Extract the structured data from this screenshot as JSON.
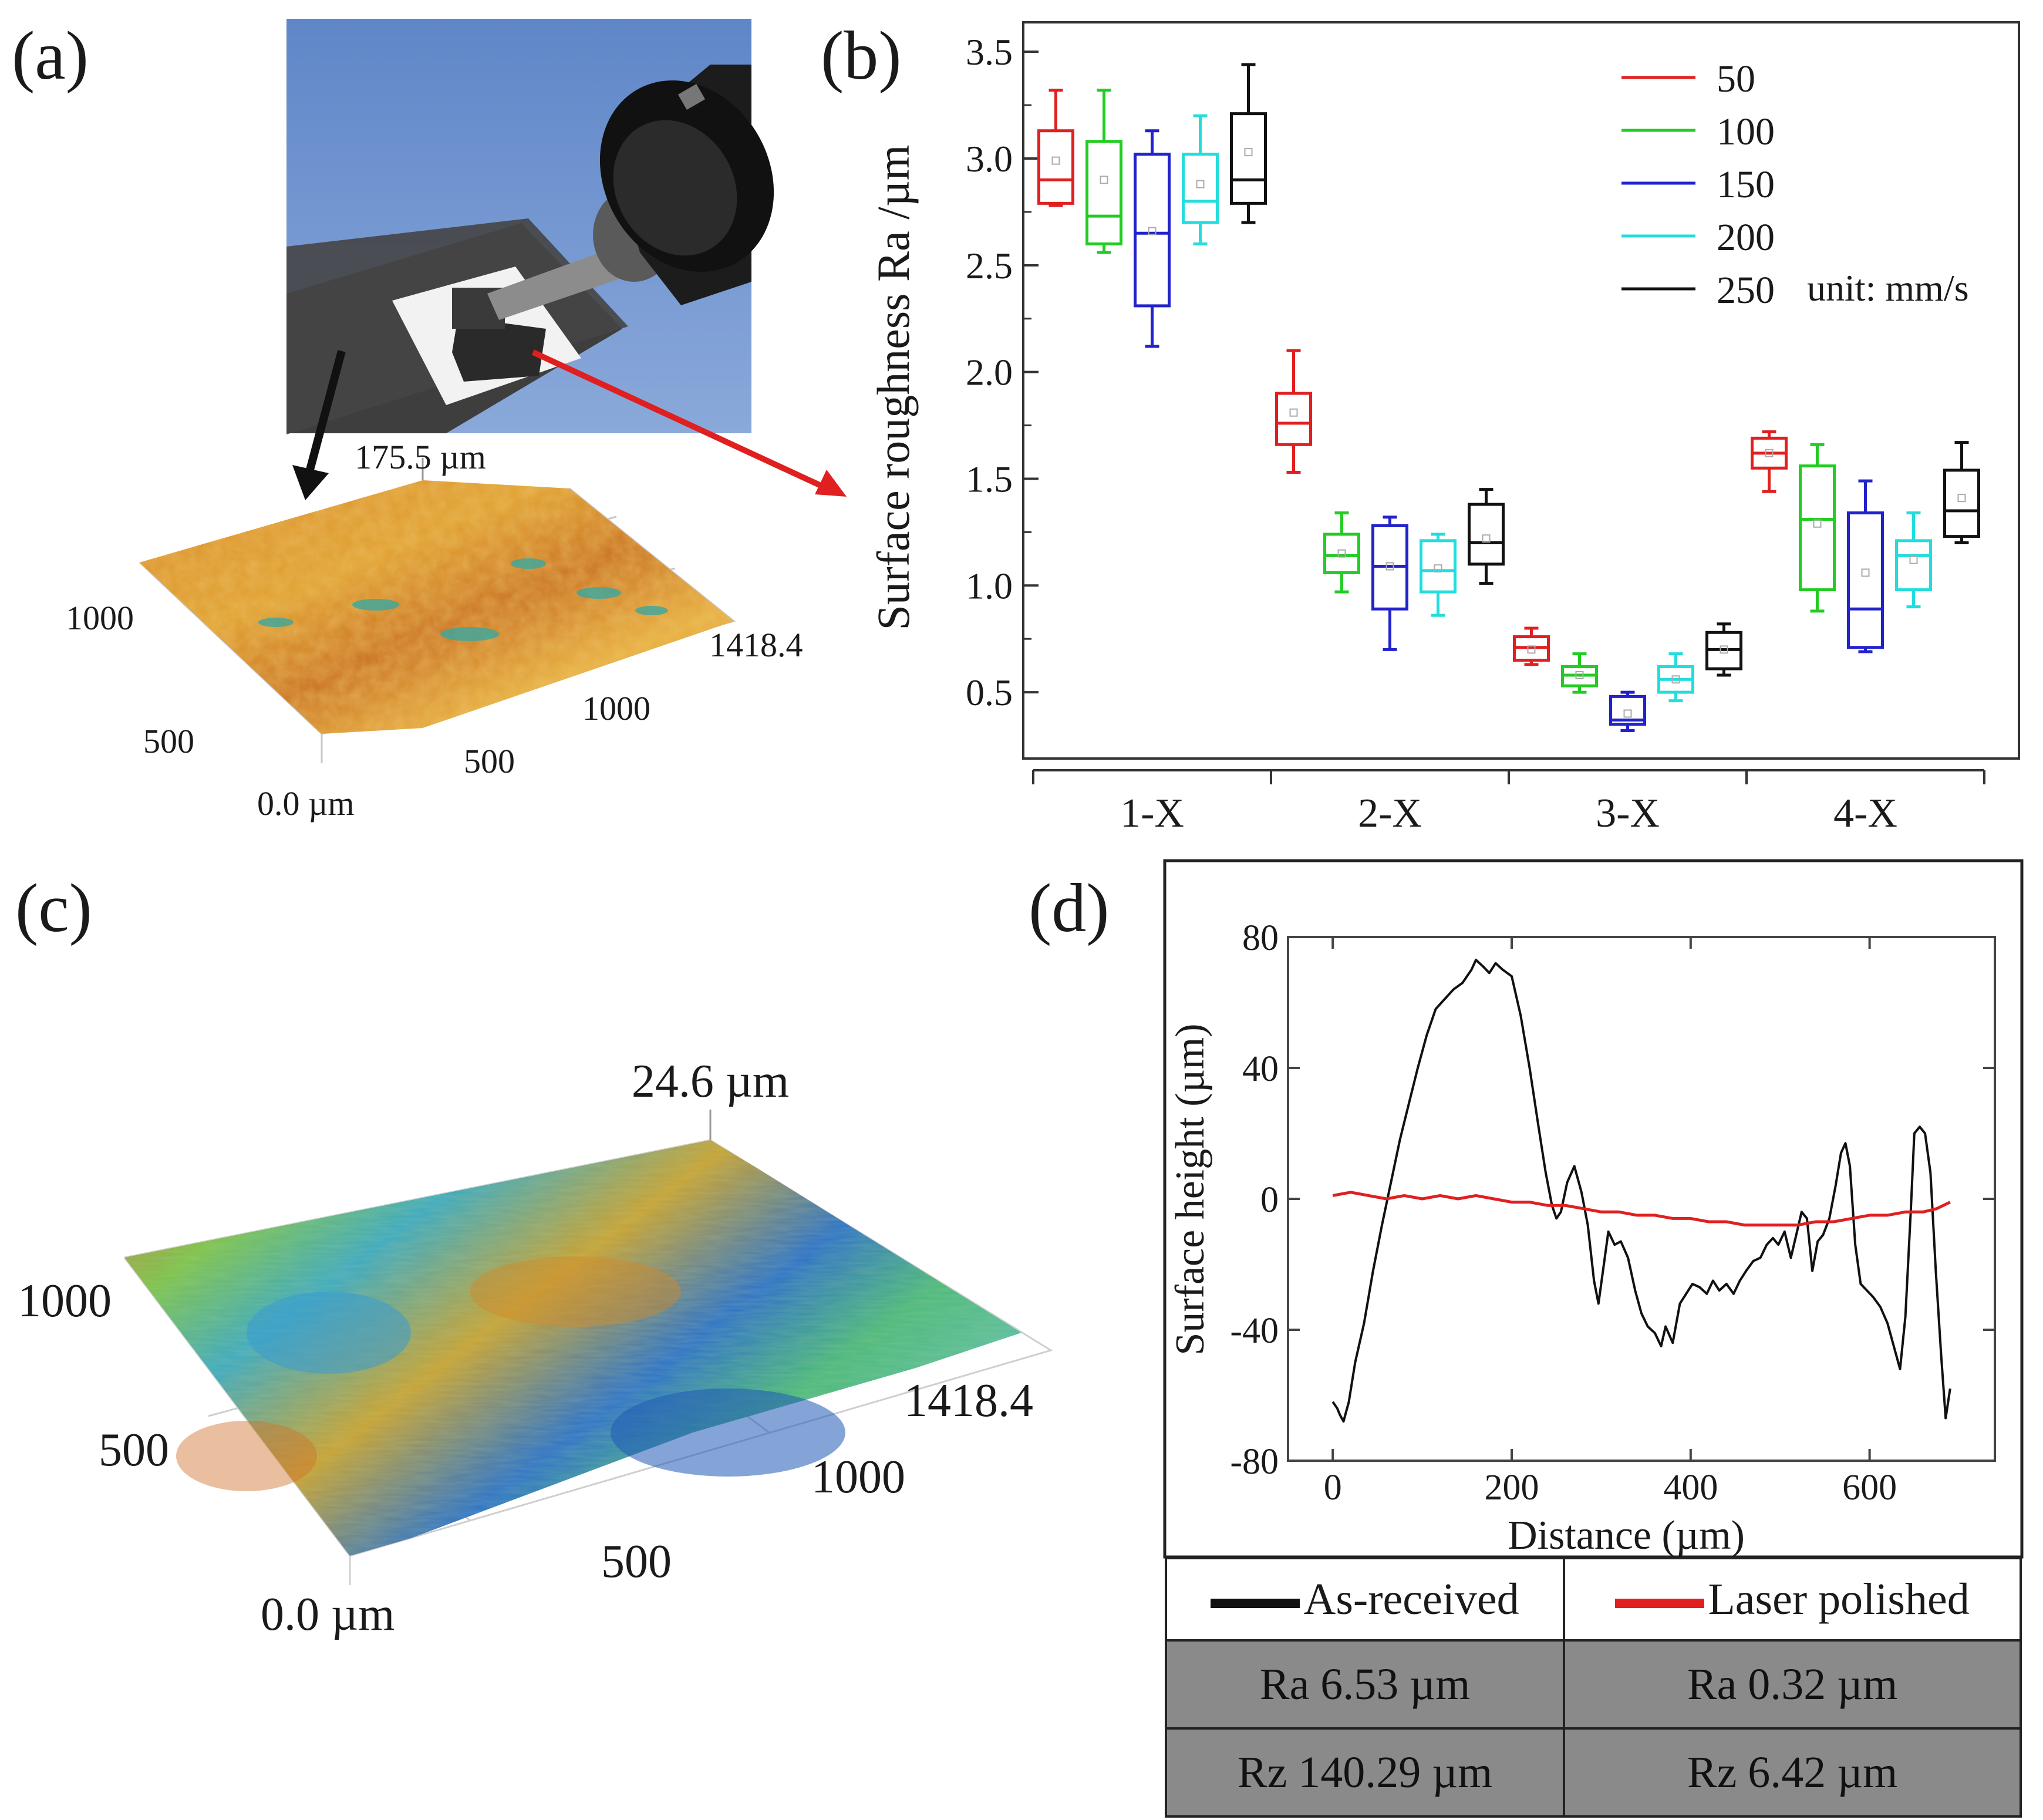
{
  "figure": {
    "panels": {
      "a": {
        "label": "(a)",
        "profile_3d": {
          "z_max_label": "175.5 µm",
          "y_label_max": "1000",
          "y_label_mid": "500",
          "origin_label": "0.0 µm",
          "x_label_mid": "500",
          "x_label_hi": "1000",
          "x_label_max": "1418.4"
        }
      },
      "b": {
        "label": "(b)"
      },
      "c": {
        "label": "(c)",
        "profile_3d": {
          "z_max_label": "24.6 µm",
          "y_label_max": "1000",
          "y_label_mid": "500",
          "origin_label": "0.0 µm",
          "x_label_mid": "500",
          "x_label_hi": "1000",
          "x_label_max": "1418.4"
        }
      },
      "d": {
        "label": "(d)"
      }
    },
    "colors": {
      "red": "#e02020",
      "green": "#22cc22",
      "blue": "#2222cc",
      "cyan": "#22dddd",
      "black": "#111111"
    }
  },
  "chart_data": [
    {
      "id": "b",
      "type": "box",
      "title": "",
      "ylabel": "Surface roughness Ra /µm",
      "xlabel": "",
      "ylim": [
        0.25,
        3.55
      ],
      "yticks": [
        0.5,
        1.0,
        1.5,
        2.0,
        2.5,
        3.0,
        3.5
      ],
      "ytick_labels": [
        "0.5",
        "1.0",
        "1.5",
        "2.0",
        "2.5",
        "3.0",
        "3.5"
      ],
      "categories": [
        "1-X",
        "2-X",
        "3-X",
        "4-X"
      ],
      "legend_note": "unit: mm/s",
      "series": [
        {
          "name": "50",
          "color": "#e02020",
          "boxes": [
            {
              "min": 2.78,
              "q1": 2.79,
              "median": 2.9,
              "q3": 3.13,
              "max": 3.32,
              "mean": 2.99
            },
            {
              "min": 1.53,
              "q1": 1.66,
              "median": 1.76,
              "q3": 1.9,
              "max": 2.1,
              "mean": 1.81
            },
            {
              "min": 0.63,
              "q1": 0.65,
              "median": 0.71,
              "q3": 0.76,
              "max": 0.8,
              "mean": 0.7
            },
            {
              "min": 1.44,
              "q1": 1.55,
              "median": 1.62,
              "q3": 1.69,
              "max": 1.72,
              "mean": 1.62
            }
          ]
        },
        {
          "name": "100",
          "color": "#22cc22",
          "boxes": [
            {
              "min": 2.56,
              "q1": 2.6,
              "median": 2.73,
              "q3": 3.08,
              "max": 3.32,
              "mean": 2.9
            },
            {
              "min": 0.97,
              "q1": 1.06,
              "median": 1.14,
              "q3": 1.24,
              "max": 1.34,
              "mean": 1.15
            },
            {
              "min": 0.5,
              "q1": 0.53,
              "median": 0.58,
              "q3": 0.62,
              "max": 0.68,
              "mean": 0.58
            },
            {
              "min": 0.88,
              "q1": 0.98,
              "median": 1.31,
              "q3": 1.56,
              "max": 1.66,
              "mean": 1.29
            }
          ]
        },
        {
          "name": "150",
          "color": "#2222cc",
          "boxes": [
            {
              "min": 2.12,
              "q1": 2.31,
              "median": 2.65,
              "q3": 3.02,
              "max": 3.13,
              "mean": 2.66
            },
            {
              "min": 0.7,
              "q1": 0.89,
              "median": 1.09,
              "q3": 1.28,
              "max": 1.32,
              "mean": 1.09
            },
            {
              "min": 0.32,
              "q1": 0.35,
              "median": 0.37,
              "q3": 0.48,
              "max": 0.5,
              "mean": 0.4
            },
            {
              "min": 0.69,
              "q1": 0.71,
              "median": 0.89,
              "q3": 1.34,
              "max": 1.49,
              "mean": 1.06
            }
          ]
        },
        {
          "name": "200",
          "color": "#22dddd",
          "boxes": [
            {
              "min": 2.6,
              "q1": 2.7,
              "median": 2.8,
              "q3": 3.02,
              "max": 3.2,
              "mean": 2.88
            },
            {
              "min": 0.86,
              "q1": 0.97,
              "median": 1.07,
              "q3": 1.21,
              "max": 1.24,
              "mean": 1.08
            },
            {
              "min": 0.46,
              "q1": 0.5,
              "median": 0.56,
              "q3": 0.62,
              "max": 0.68,
              "mean": 0.56
            },
            {
              "min": 0.9,
              "q1": 0.98,
              "median": 1.14,
              "q3": 1.21,
              "max": 1.34,
              "mean": 1.12
            }
          ]
        },
        {
          "name": "250",
          "color": "#111111",
          "boxes": [
            {
              "min": 2.7,
              "q1": 2.79,
              "median": 2.9,
              "q3": 3.21,
              "max": 3.44,
              "mean": 3.03
            },
            {
              "min": 1.01,
              "q1": 1.1,
              "median": 1.2,
              "q3": 1.38,
              "max": 1.45,
              "mean": 1.22
            },
            {
              "min": 0.58,
              "q1": 0.61,
              "median": 0.7,
              "q3": 0.78,
              "max": 0.82,
              "mean": 0.7
            },
            {
              "min": 1.2,
              "q1": 1.23,
              "median": 1.35,
              "q3": 1.54,
              "max": 1.67,
              "mean": 1.41
            }
          ]
        }
      ]
    },
    {
      "id": "d",
      "type": "line",
      "title": "",
      "xlabel": "Distance (µm)",
      "ylabel": "Surface height (µm)",
      "xlim": [
        -50,
        740
      ],
      "ylim": [
        -80,
        80
      ],
      "xticks": [
        0,
        200,
        400,
        600
      ],
      "xtick_labels": [
        "0",
        "200",
        "400",
        "600"
      ],
      "yticks": [
        -80,
        -40,
        0,
        40,
        80
      ],
      "ytick_labels": [
        "-80",
        "-40",
        "0",
        "40",
        "80"
      ],
      "series": [
        {
          "name": "As-received",
          "color": "#111111",
          "points": [
            [
              0,
              -62
            ],
            [
              5,
              -64
            ],
            [
              8,
              -66
            ],
            [
              12,
              -68
            ],
            [
              18,
              -62
            ],
            [
              25,
              -50
            ],
            [
              35,
              -38
            ],
            [
              45,
              -22
            ],
            [
              55,
              -8
            ],
            [
              65,
              5
            ],
            [
              75,
              18
            ],
            [
              85,
              29
            ],
            [
              95,
              40
            ],
            [
              105,
              50
            ],
            [
              115,
              58
            ],
            [
              125,
              61
            ],
            [
              135,
              64
            ],
            [
              145,
              66
            ],
            [
              155,
              70
            ],
            [
              160,
              73
            ],
            [
              168,
              71
            ],
            [
              175,
              69
            ],
            [
              182,
              72
            ],
            [
              190,
              70
            ],
            [
              200,
              68
            ],
            [
              210,
              56
            ],
            [
              220,
              40
            ],
            [
              230,
              22
            ],
            [
              238,
              8
            ],
            [
              245,
              -2
            ],
            [
              250,
              -6
            ],
            [
              255,
              -4
            ],
            [
              262,
              5
            ],
            [
              270,
              10
            ],
            [
              278,
              2
            ],
            [
              285,
              -8
            ],
            [
              292,
              -25
            ],
            [
              297,
              -32
            ],
            [
              303,
              -20
            ],
            [
              308,
              -10
            ],
            [
              315,
              -14
            ],
            [
              322,
              -13
            ],
            [
              330,
              -18
            ],
            [
              338,
              -28
            ],
            [
              345,
              -35
            ],
            [
              352,
              -39
            ],
            [
              360,
              -41
            ],
            [
              367,
              -45
            ],
            [
              372,
              -39
            ],
            [
              380,
              -44
            ],
            [
              388,
              -32
            ],
            [
              395,
              -29
            ],
            [
              402,
              -26
            ],
            [
              410,
              -27
            ],
            [
              418,
              -29
            ],
            [
              425,
              -25
            ],
            [
              432,
              -28
            ],
            [
              440,
              -26
            ],
            [
              448,
              -29
            ],
            [
              455,
              -25
            ],
            [
              462,
              -22
            ],
            [
              470,
              -19
            ],
            [
              478,
              -18
            ],
            [
              485,
              -14
            ],
            [
              492,
              -12
            ],
            [
              498,
              -14
            ],
            [
              505,
              -10
            ],
            [
              512,
              -18
            ],
            [
              518,
              -11
            ],
            [
              524,
              -4
            ],
            [
              530,
              -6
            ],
            [
              536,
              -22
            ],
            [
              542,
              -13
            ],
            [
              548,
              -11
            ],
            [
              555,
              -6
            ],
            [
              562,
              4
            ],
            [
              568,
              14
            ],
            [
              573,
              17
            ],
            [
              578,
              10
            ],
            [
              584,
              -14
            ],
            [
              590,
              -26
            ],
            [
              597,
              -28
            ],
            [
              604,
              -30
            ],
            [
              612,
              -33
            ],
            [
              620,
              -38
            ],
            [
              628,
              -46
            ],
            [
              634,
              -52
            ],
            [
              640,
              -36
            ],
            [
              646,
              -4
            ],
            [
              650,
              20
            ],
            [
              656,
              22
            ],
            [
              662,
              20
            ],
            [
              668,
              8
            ],
            [
              674,
              -22
            ],
            [
              680,
              -48
            ],
            [
              685,
              -67
            ],
            [
              690,
              -58
            ]
          ]
        },
        {
          "name": "Laser polished",
          "color": "#e02020",
          "points": [
            [
              0,
              1
            ],
            [
              20,
              2
            ],
            [
              40,
              1
            ],
            [
              60,
              0
            ],
            [
              80,
              1
            ],
            [
              100,
              0
            ],
            [
              120,
              1
            ],
            [
              140,
              0
            ],
            [
              160,
              1
            ],
            [
              180,
              0
            ],
            [
              200,
              -1
            ],
            [
              220,
              -1
            ],
            [
              240,
              -2
            ],
            [
              260,
              -2
            ],
            [
              280,
              -3
            ],
            [
              300,
              -4
            ],
            [
              320,
              -4
            ],
            [
              340,
              -5
            ],
            [
              360,
              -5
            ],
            [
              380,
              -6
            ],
            [
              400,
              -6
            ],
            [
              420,
              -7
            ],
            [
              440,
              -7
            ],
            [
              460,
              -8
            ],
            [
              480,
              -8
            ],
            [
              500,
              -8
            ],
            [
              520,
              -8
            ],
            [
              540,
              -7
            ],
            [
              560,
              -7
            ],
            [
              580,
              -6
            ],
            [
              600,
              -5
            ],
            [
              620,
              -5
            ],
            [
              640,
              -4
            ],
            [
              660,
              -4
            ],
            [
              675,
              -3
            ],
            [
              690,
              -1
            ]
          ]
        }
      ],
      "table": {
        "legend": [
          "As-received",
          "Laser polished"
        ],
        "rows": [
          [
            "Ra 6.53 µm",
            "Ra 0.32 µm"
          ],
          [
            "Rz 140.29 µm",
            "Rz 6.42 µm"
          ]
        ]
      }
    }
  ]
}
